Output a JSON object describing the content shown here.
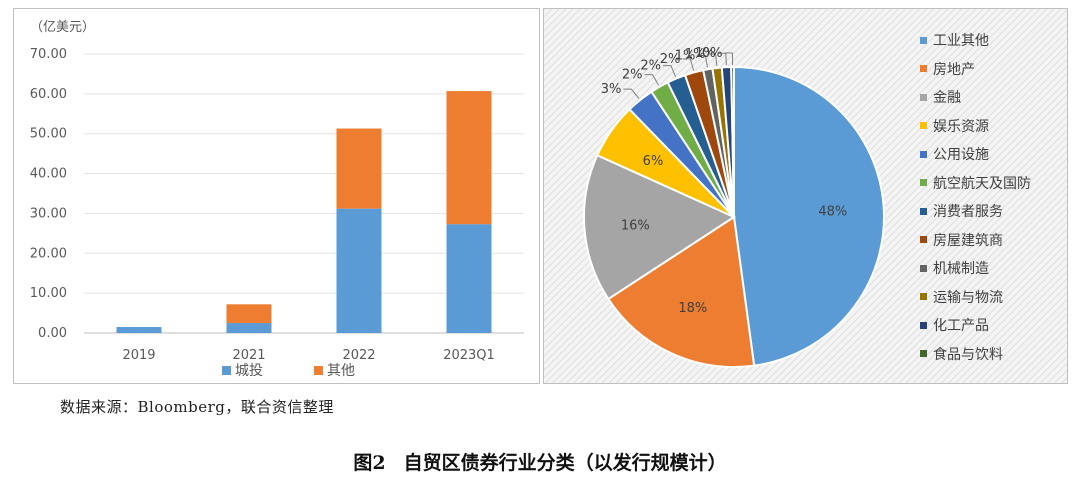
{
  "chart_data": [
    {
      "type": "bar",
      "stacked": true,
      "unit_label": "（亿美元）",
      "categories": [
        "2019",
        "2021",
        "2022",
        "2023Q1"
      ],
      "series": [
        {
          "name": "城投",
          "color": "#5b9bd5",
          "values": [
            1.5,
            2.5,
            31.2,
            27.3
          ]
        },
        {
          "name": "其他",
          "color": "#ed7d31",
          "values": [
            0.0,
            4.7,
            20.1,
            33.4
          ]
        }
      ],
      "y_ticks": [
        "0.00",
        "10.00",
        "20.00",
        "30.00",
        "40.00",
        "50.00",
        "60.00",
        "70.00"
      ],
      "ylim": [
        0,
        70
      ],
      "legend_position": "bottom"
    },
    {
      "type": "pie",
      "legend_position": "right",
      "slices": [
        {
          "label": "工业其他",
          "value": 48,
          "display": "48%",
          "color": "#5b9bd5"
        },
        {
          "label": "房地产",
          "value": 18,
          "display": "18%",
          "color": "#ed7d31"
        },
        {
          "label": "金融",
          "value": 16,
          "display": "16%",
          "color": "#a5a5a5"
        },
        {
          "label": "娱乐资源",
          "value": 6,
          "display": "6%",
          "color": "#ffc000"
        },
        {
          "label": "公用设施",
          "value": 3,
          "display": "3%",
          "color": "#4472c4"
        },
        {
          "label": "航空航天及国防",
          "value": 2,
          "display": "2%",
          "color": "#70ad47"
        },
        {
          "label": "消费者服务",
          "value": 2,
          "display": "2%",
          "color": "#255e91"
        },
        {
          "label": "房屋建筑商",
          "value": 2,
          "display": "2%",
          "color": "#9e480e"
        },
        {
          "label": "机械制造",
          "value": 1,
          "display": "1%",
          "color": "#636363"
        },
        {
          "label": "运输与物流",
          "value": 1,
          "display": "1%",
          "color": "#997300"
        },
        {
          "label": "化工产品",
          "value": 1,
          "display": "1%",
          "color": "#264478"
        },
        {
          "label": "食品与饮料",
          "value": 0.3,
          "display": "0%",
          "color": "#43682b"
        }
      ]
    }
  ],
  "source_note": "数据来源：Bloomberg，联合资信整理",
  "figure_caption": {
    "number": "图2",
    "title": "自贸区债券行业分类（以发行规模计）"
  }
}
